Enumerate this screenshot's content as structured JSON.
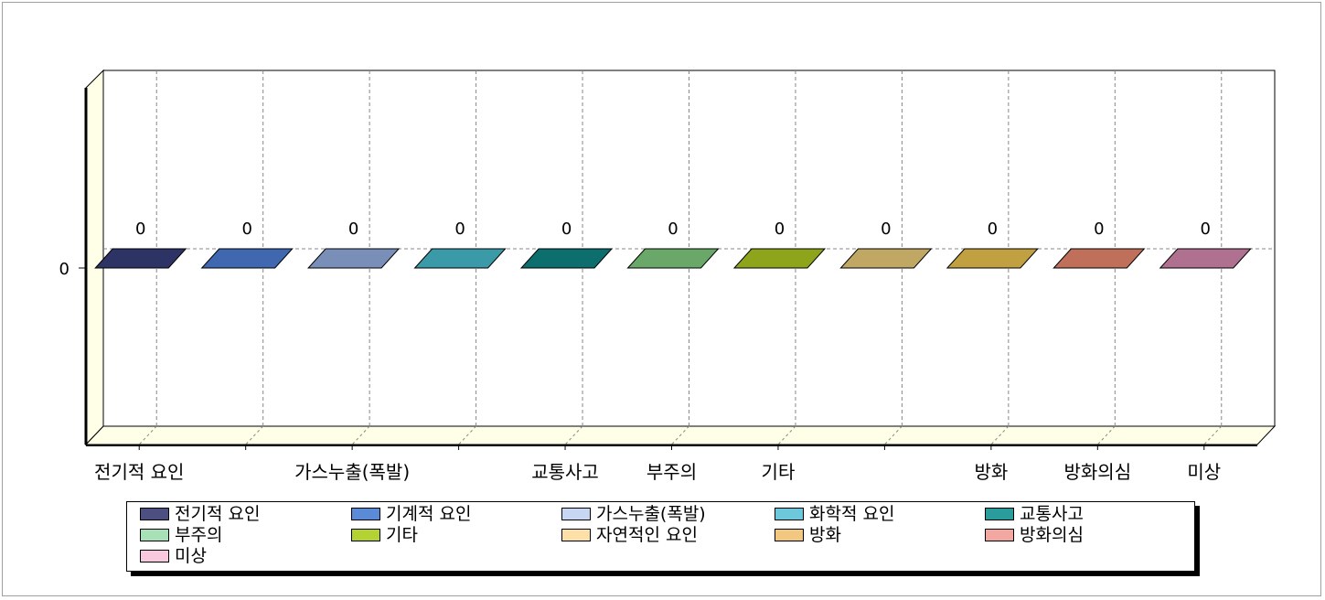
{
  "chart_data": {
    "type": "bar",
    "categories": [
      "전기적 요인",
      "기계적 요인",
      "가스누출(폭발)",
      "화학적 요인",
      "교통사고",
      "부주의",
      "기타",
      "자연적인 요인",
      "방화",
      "방화의심",
      "미상"
    ],
    "values": [
      0,
      0,
      0,
      0,
      0,
      0,
      0,
      0,
      0,
      0,
      0
    ],
    "visible_x_labels": [
      "전기적 요인",
      "가스누출(폭발)",
      "교통사고",
      "부주의",
      "기타",
      "방화",
      "방화의심",
      "미상"
    ],
    "y_tick_labels": [
      "0"
    ],
    "bar_colors": [
      "#2e3366",
      "#3f68b0",
      "#7a8fb8",
      "#3a9aa8",
      "#0d6e6e",
      "#6aa86a",
      "#8ea41a",
      "#c0a864",
      "#c0a040",
      "#c0705a",
      "#b07090"
    ],
    "legend_colors": [
      "#4d4f80",
      "#5b8ad6",
      "#c7d6f2",
      "#6ec8dc",
      "#2a9c9c",
      "#a8e0b8",
      "#b4d232",
      "#fde0a8",
      "#f2c880",
      "#f2a8a0",
      "#f8c8dc"
    ],
    "grid": true,
    "legend_position": "bottom",
    "title": "",
    "xlabel": "",
    "ylabel": ""
  },
  "legend": {
    "items": [
      "전기적 요인",
      "기계적 요인",
      "가스누출(폭발)",
      "화학적 요인",
      "교통사고",
      "부주의",
      "기타",
      "자연적인 요인",
      "방화",
      "방화의심",
      "미상"
    ]
  }
}
